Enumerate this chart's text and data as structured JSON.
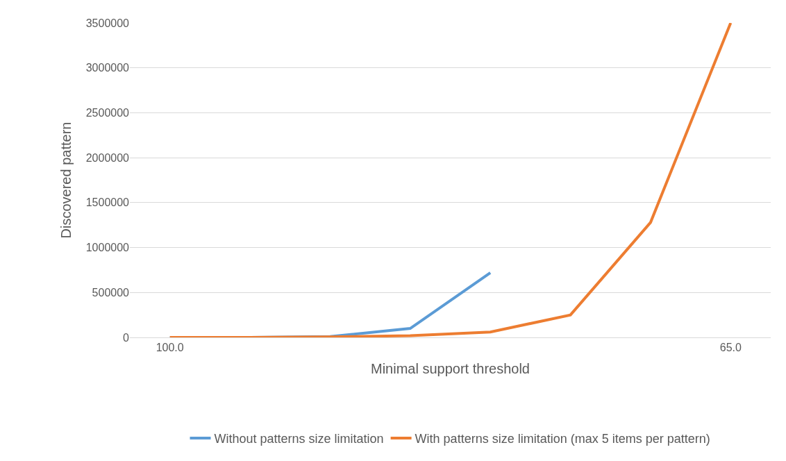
{
  "chart_data": {
    "type": "line",
    "xlabel": "Minimal support threshold",
    "ylabel": "Discovered pattern",
    "categories": [
      "100.0",
      null,
      null,
      null,
      null,
      null,
      null,
      "65.0"
    ],
    "series": [
      {
        "name": "Without patterns size limitation",
        "color": "#5b9bd5",
        "values": [
          0,
          0,
          10000,
          100000,
          720000,
          null,
          null,
          null
        ]
      },
      {
        "name": "With patterns size limitation (max 5 items per pattern)",
        "color": "#ed7d31",
        "values": [
          0,
          0,
          5000,
          20000,
          60000,
          250000,
          1280000,
          3500000
        ]
      }
    ],
    "ylim": [
      0,
      3500000
    ],
    "yticks": [
      0,
      500000,
      1000000,
      1500000,
      2000000,
      2500000,
      3000000,
      3500000
    ],
    "grid": "y",
    "legend": "bottom",
    "marker": "none",
    "line_style": "solid"
  }
}
